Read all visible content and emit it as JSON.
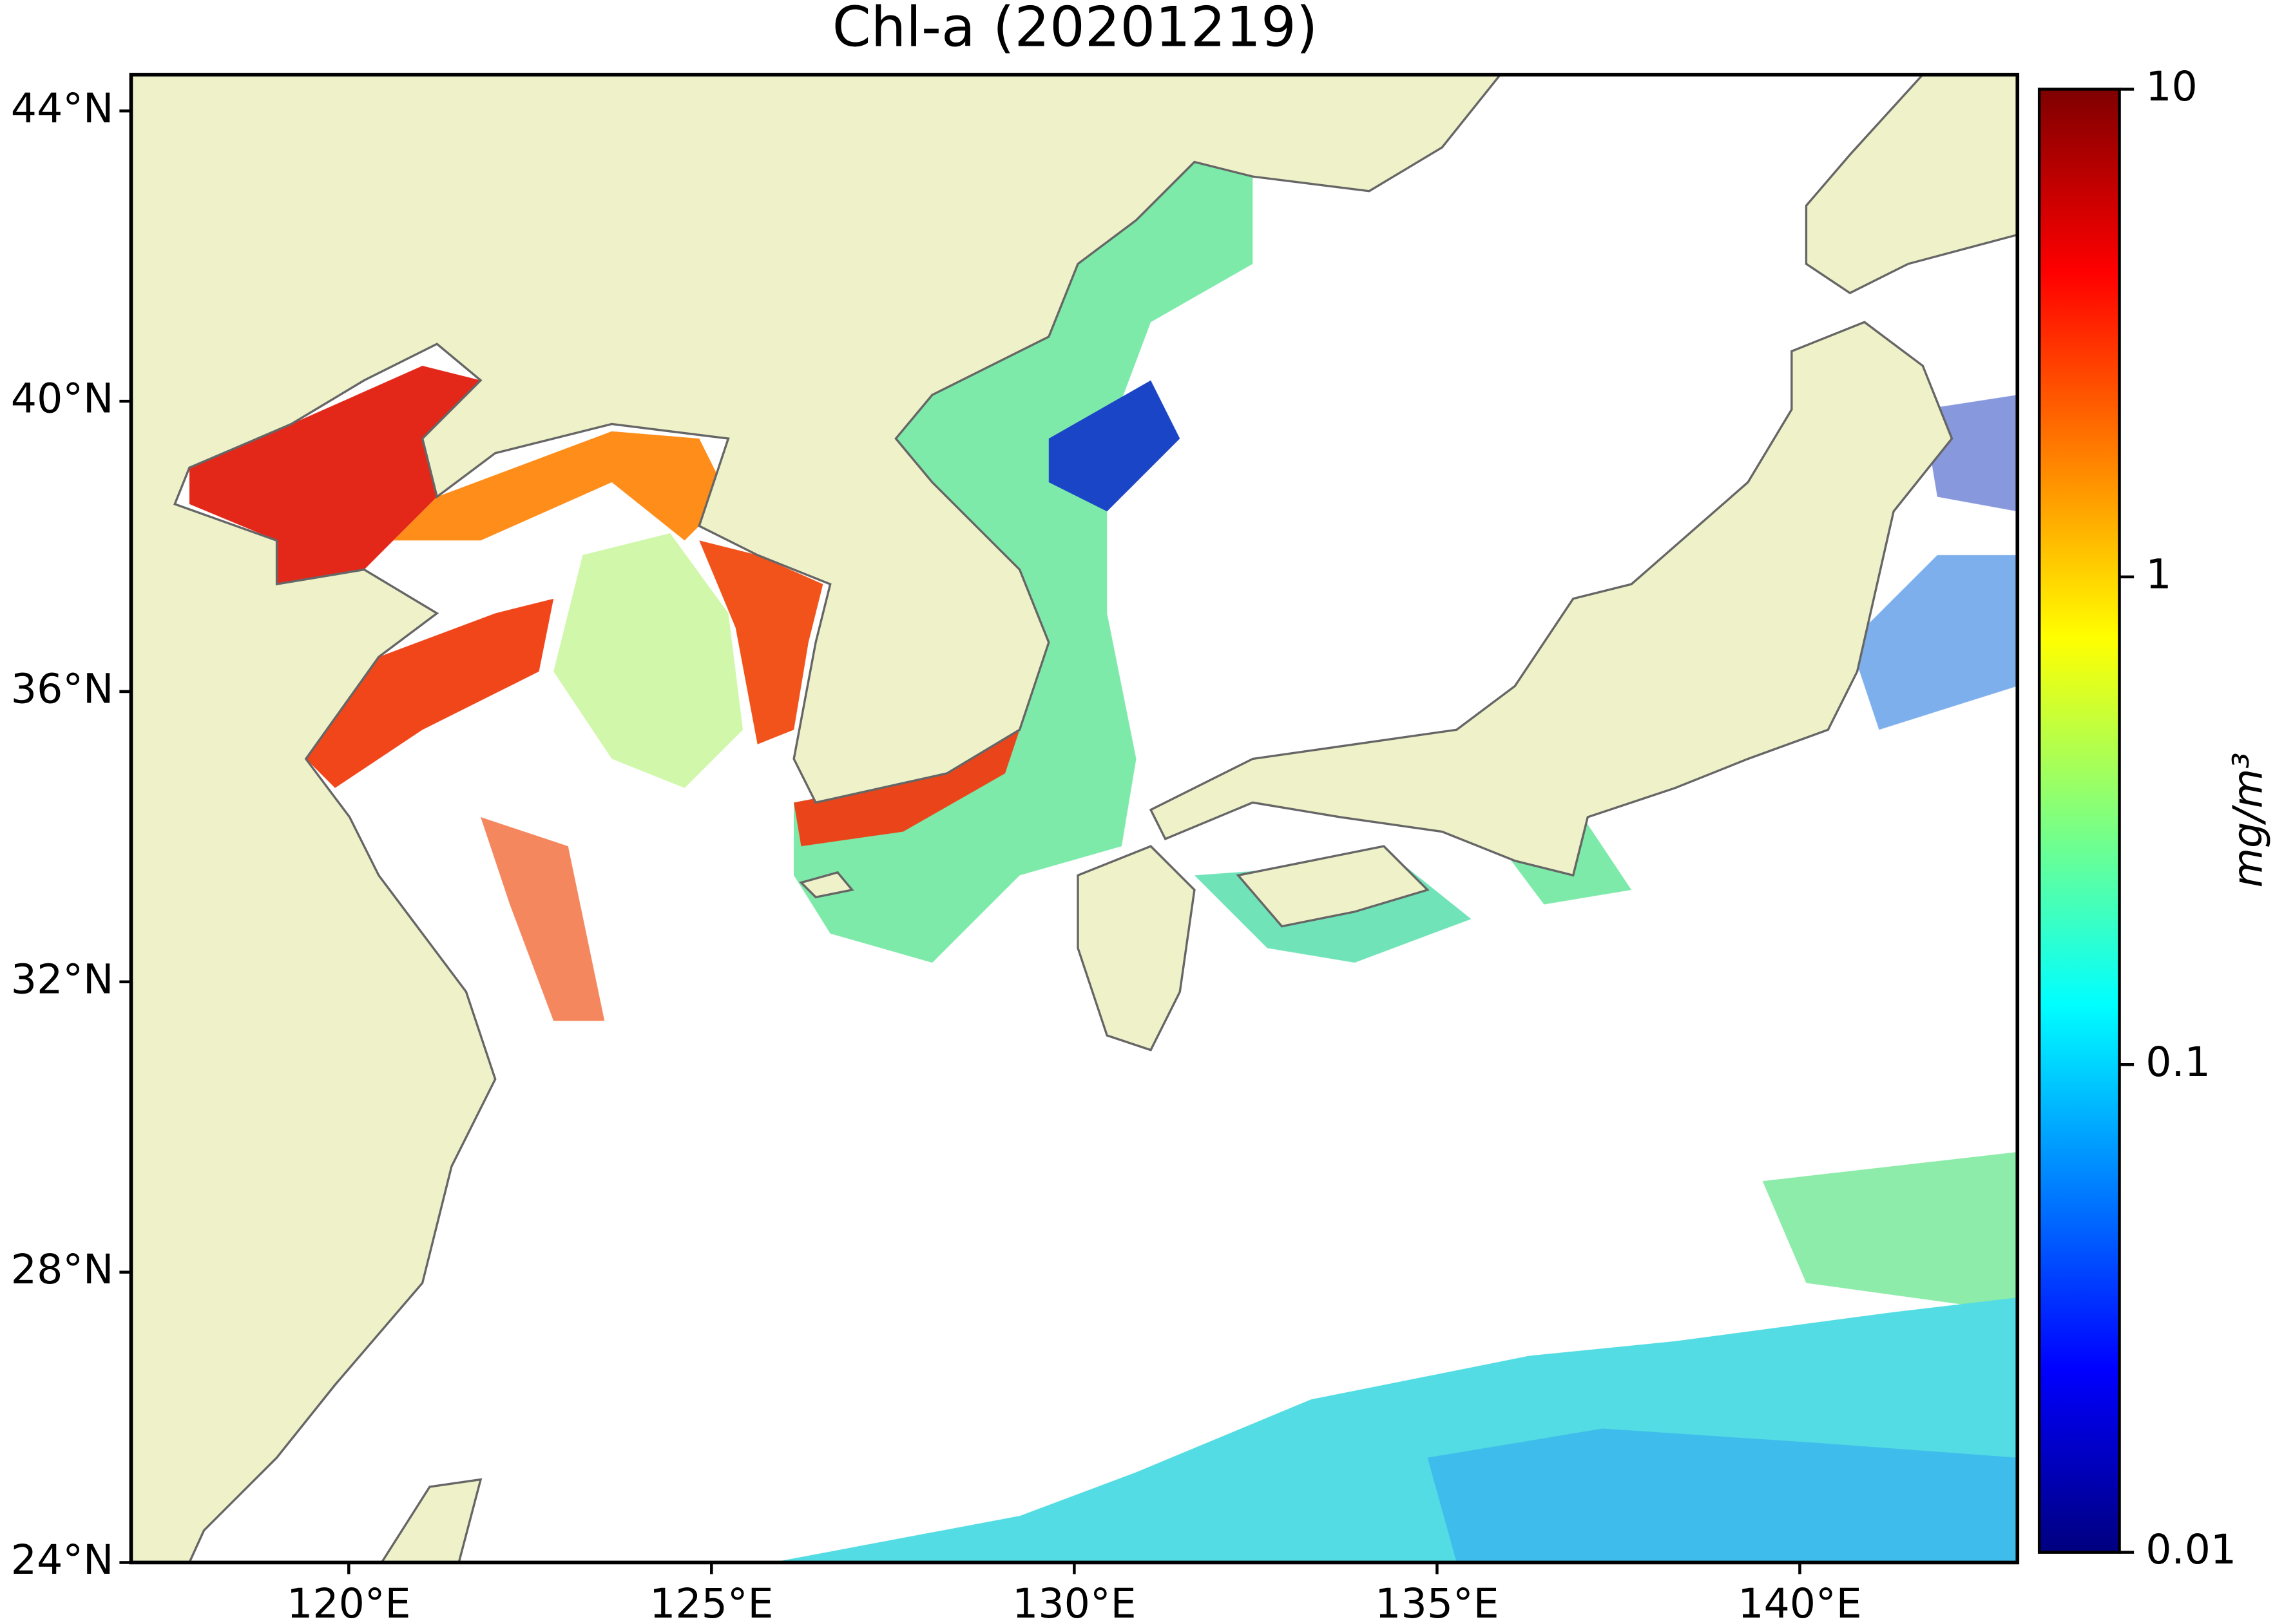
{
  "title": "Chl-a (20201219)",
  "map": {
    "xlim": [
      117,
      143
    ],
    "ylim": [
      24,
      44.5
    ],
    "xticks": [
      {
        "value": 120,
        "label": "120°E"
      },
      {
        "value": 125,
        "label": "125°E"
      },
      {
        "value": 130,
        "label": "130°E"
      },
      {
        "value": 135,
        "label": "135°E"
      },
      {
        "value": 140,
        "label": "140°E"
      }
    ],
    "yticks": [
      {
        "value": 24,
        "label": "24°N"
      },
      {
        "value": 28,
        "label": "28°N"
      },
      {
        "value": 32,
        "label": "32°N"
      },
      {
        "value": 36,
        "label": "36°N"
      },
      {
        "value": 40,
        "label": "40°N"
      },
      {
        "value": 44,
        "label": "44°N"
      }
    ]
  },
  "colorbar": {
    "scale": "log",
    "lim": [
      0.01,
      10
    ],
    "ticks": [
      0.01,
      0.1,
      1,
      10
    ],
    "label": "mg/m³",
    "colormap": "jet"
  }
}
